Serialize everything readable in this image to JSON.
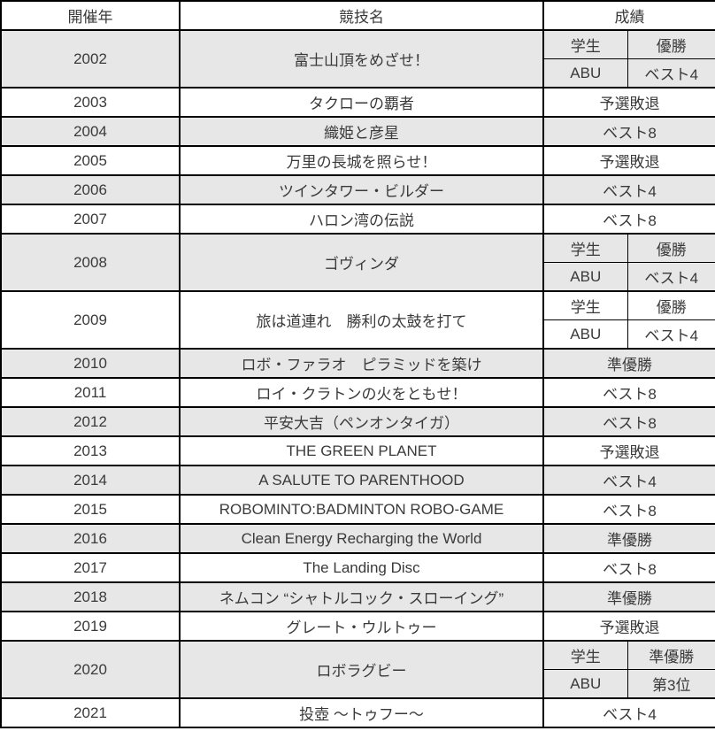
{
  "table": {
    "headers": {
      "year": "開催年",
      "event": "競技名",
      "result": "成績"
    },
    "colors": {
      "shaded_row": "#e7e7e7",
      "border": "#000000",
      "text": "#3a3a3a"
    },
    "rows": [
      {
        "year": "2002",
        "event": "富士山頂をめざせ！",
        "shaded": true,
        "results": [
          {
            "division": "学生",
            "result": "優勝"
          },
          {
            "division": "ABU",
            "result": "ベスト4"
          }
        ]
      },
      {
        "year": "2003",
        "event": "タクローの覇者",
        "shaded": false,
        "results": [
          {
            "result": "予選敗退"
          }
        ]
      },
      {
        "year": "2004",
        "event": "織姫と彦星",
        "shaded": true,
        "results": [
          {
            "result": "ベスト8"
          }
        ]
      },
      {
        "year": "2005",
        "event": "万里の長城を照らせ！",
        "shaded": false,
        "results": [
          {
            "result": "予選敗退"
          }
        ]
      },
      {
        "year": "2006",
        "event": "ツインタワー・ビルダー",
        "shaded": true,
        "results": [
          {
            "result": "ベスト4"
          }
        ]
      },
      {
        "year": "2007",
        "event": "ハロン湾の伝説",
        "shaded": false,
        "results": [
          {
            "result": "ベスト8"
          }
        ]
      },
      {
        "year": "2008",
        "event": "ゴヴィンダ",
        "shaded": true,
        "results": [
          {
            "division": "学生",
            "result": "優勝"
          },
          {
            "division": "ABU",
            "result": "ベスト4"
          }
        ]
      },
      {
        "year": "2009",
        "event": "旅は道連れ　勝利の太鼓を打て",
        "shaded": false,
        "results": [
          {
            "division": "学生",
            "result": "優勝"
          },
          {
            "division": "ABU",
            "result": "ベスト4"
          }
        ]
      },
      {
        "year": "2010",
        "event": "ロボ・ファラオ　ピラミッドを築け",
        "shaded": true,
        "results": [
          {
            "result": "準優勝"
          }
        ]
      },
      {
        "year": "2011",
        "event": "ロイ・クラトンの火をともせ！",
        "shaded": false,
        "results": [
          {
            "result": "ベスト8"
          }
        ]
      },
      {
        "year": "2012",
        "event": "平安大吉（ペンオンタイガ）",
        "shaded": true,
        "results": [
          {
            "result": "ベスト8"
          }
        ]
      },
      {
        "year": "2013",
        "event": "THE GREEN PLANET",
        "shaded": false,
        "results": [
          {
            "result": "予選敗退"
          }
        ]
      },
      {
        "year": "2014",
        "event": "A SALUTE TO PARENTHOOD",
        "shaded": true,
        "results": [
          {
            "result": "ベスト4"
          }
        ]
      },
      {
        "year": "2015",
        "event": "ROBOMINTO:BADMINTON ROBO-GAME",
        "shaded": false,
        "results": [
          {
            "result": "ベスト8"
          }
        ]
      },
      {
        "year": "2016",
        "event": "Clean Energy Recharging the World",
        "shaded": true,
        "results": [
          {
            "result": "準優勝"
          }
        ]
      },
      {
        "year": "2017",
        "event": "The Landing Disc",
        "shaded": false,
        "results": [
          {
            "result": "ベスト8"
          }
        ]
      },
      {
        "year": "2018",
        "event": "ネムコン “シャトルコック・スローイング”",
        "shaded": true,
        "results": [
          {
            "result": "準優勝"
          }
        ]
      },
      {
        "year": "2019",
        "event": "グレート・ウルトゥー",
        "shaded": false,
        "results": [
          {
            "result": "予選敗退"
          }
        ]
      },
      {
        "year": "2020",
        "event": "ロボラグビー",
        "shaded": true,
        "results": [
          {
            "division": "学生",
            "result": "準優勝"
          },
          {
            "division": "ABU",
            "result": "第3位"
          }
        ]
      },
      {
        "year": "2021",
        "event": "投壺 ～トゥフー～",
        "shaded": false,
        "results": [
          {
            "result": "ベスト4"
          }
        ]
      }
    ]
  }
}
